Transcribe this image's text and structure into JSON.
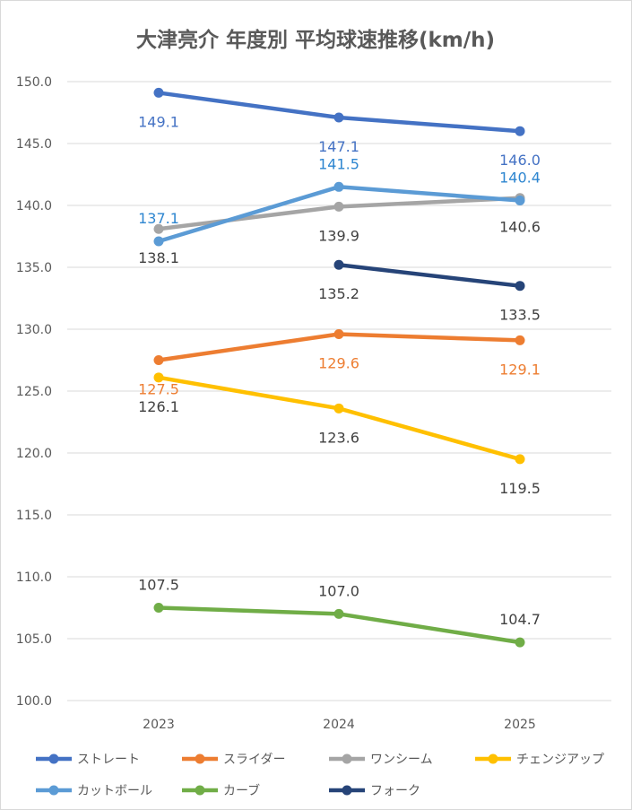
{
  "chart_data": {
    "type": "line",
    "title": "大津亮介 年度別 平均球速推移(km/h)",
    "categories": [
      "2023",
      "2024",
      "2025"
    ],
    "ylim": [
      100,
      150
    ],
    "yticks": [
      "100.0",
      "105.0",
      "110.0",
      "115.0",
      "120.0",
      "125.0",
      "130.0",
      "135.0",
      "140.0",
      "145.0",
      "150.0"
    ],
    "grid": true,
    "legend_position": "bottom",
    "series": [
      {
        "name": "ストレート",
        "color": "#4472C4",
        "label_color": "#4472C4",
        "label_pos": "below",
        "values": [
          149.1,
          147.1,
          146.0
        ]
      },
      {
        "name": "スライダー",
        "color": "#ED7D31",
        "label_color": "#ED7D31",
        "label_pos": "below",
        "values": [
          127.5,
          129.6,
          129.1
        ]
      },
      {
        "name": "ワンシーム",
        "color": "#A5A5A5",
        "label_color": "#404040",
        "label_pos": "below",
        "values": [
          138.1,
          139.9,
          140.6
        ]
      },
      {
        "name": "チェンジアップ",
        "color": "#FFC000",
        "label_color": "#404040",
        "label_pos": "below",
        "values": [
          126.1,
          123.6,
          119.5
        ]
      },
      {
        "name": "カットボール",
        "color": "#5B9BD5",
        "label_color": "#2E86D0",
        "label_pos": "above",
        "values": [
          137.1,
          141.5,
          140.4
        ]
      },
      {
        "name": "カーブ",
        "color": "#70AD47",
        "label_color": "#404040",
        "label_pos": "above",
        "values": [
          107.5,
          107.0,
          104.7
        ]
      },
      {
        "name": "フォーク",
        "color": "#264478",
        "label_color": "#404040",
        "label_pos": "below",
        "values": [
          null,
          135.2,
          133.5
        ]
      }
    ]
  }
}
